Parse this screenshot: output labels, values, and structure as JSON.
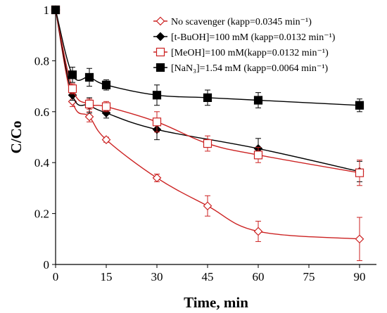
{
  "chart_data": {
    "type": "line",
    "title": "",
    "xlabel": "Time, min",
    "ylabel": "C/Co",
    "xlim": [
      0,
      95
    ],
    "ylim": [
      0,
      1
    ],
    "x_ticks": [
      0,
      15,
      30,
      45,
      60,
      75,
      90
    ],
    "y_ticks": [
      0,
      0.2,
      0.4,
      0.6,
      0.8,
      1
    ],
    "x_tick_labels": [
      "0",
      "15",
      "30",
      "45",
      "60",
      "75",
      "90"
    ],
    "y_tick_labels": [
      "0",
      "0.2",
      "0.4",
      "0.6",
      "0.8",
      "1"
    ],
    "grid": false,
    "legend_position": "top-right",
    "series": [
      {
        "name": "No scavenger (kapp=0.0345 min⁻¹)",
        "color": "#cc2222",
        "marker": "diamond-open",
        "x": [
          0,
          5,
          10,
          15,
          30,
          45,
          60,
          90
        ],
        "y": [
          1.0,
          0.64,
          0.58,
          0.49,
          0.34,
          0.23,
          0.13,
          0.1
        ],
        "err": [
          0.0,
          0.02,
          0.02,
          0.01,
          0.015,
          0.04,
          0.04,
          0.085
        ]
      },
      {
        "name": "[t-BuOH]=100 mM (kapp=0.0132 min⁻¹)",
        "color": "#000000",
        "marker": "diamond-filled",
        "x": [
          0,
          5,
          10,
          15,
          30,
          60,
          90
        ],
        "y": [
          1.0,
          0.665,
          0.625,
          0.595,
          0.53,
          0.455,
          0.365
        ],
        "err": [
          0.0,
          0.02,
          0.03,
          0.02,
          0.04,
          0.04,
          0.04
        ]
      },
      {
        "name": "[MeOH]=100 mM(kapp=0.0132 min⁻¹)",
        "color": "#cc2222",
        "marker": "square-open",
        "x": [
          0,
          5,
          10,
          15,
          30,
          45,
          60,
          90
        ],
        "y": [
          1.0,
          0.69,
          0.63,
          0.62,
          0.56,
          0.475,
          0.43,
          0.36
        ],
        "err": [
          0.0,
          0.02,
          0.02,
          0.02,
          0.04,
          0.03,
          0.03,
          0.05
        ]
      },
      {
        "name": "[NaN₃]=1.54 mM (kapp=0.0064 min⁻¹)",
        "color": "#000000",
        "marker": "square-filled",
        "x": [
          0,
          5,
          10,
          15,
          30,
          45,
          60,
          90
        ],
        "y": [
          1.0,
          0.745,
          0.735,
          0.705,
          0.665,
          0.655,
          0.645,
          0.625
        ],
        "err": [
          0.0,
          0.03,
          0.035,
          0.02,
          0.04,
          0.03,
          0.03,
          0.025
        ]
      }
    ]
  }
}
